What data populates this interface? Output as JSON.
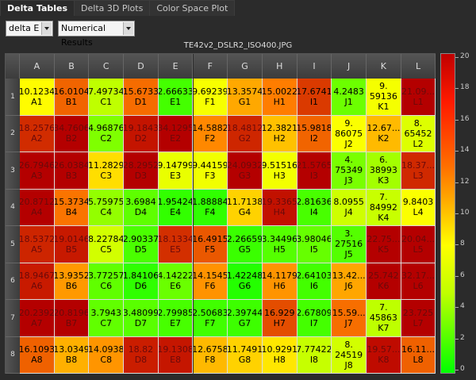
{
  "tabs": [
    {
      "label": "Delta Tables",
      "active": true
    },
    {
      "label": "Delta 3D Plots",
      "active": false
    },
    {
      "label": "Color Space Plot",
      "active": false
    }
  ],
  "controls": {
    "metric_select": "delta E",
    "view_select": "Numerical Results"
  },
  "plot_title": "TE42v2_DSLR2_ISO400.JPG",
  "columns": [
    "A",
    "B",
    "C",
    "D",
    "E",
    "F",
    "G",
    "H",
    "I",
    "J",
    "K",
    "L"
  ],
  "rows": [
    "1",
    "2",
    "3",
    "4",
    "5",
    "6",
    "7",
    "8"
  ],
  "cells": [
    [
      [
        "10.1234",
        "A1"
      ],
      [
        "16.0104",
        "B1"
      ],
      [
        "7.49734",
        "C1"
      ],
      [
        "15.6733",
        "D1"
      ],
      [
        "2.66633",
        "E1"
      ],
      [
        "9.69239",
        "F1"
      ],
      [
        "13.3574",
        "G1"
      ],
      [
        "15.0022",
        "H1"
      ],
      [
        "17.6741",
        "I1"
      ],
      [
        "4.2483",
        "J1"
      ],
      [
        "9.\n59136",
        "K1"
      ],
      [
        "21.09...",
        "L1"
      ]
    ],
    [
      [
        "18.2576",
        "A2"
      ],
      [
        "34.7606",
        "B2"
      ],
      [
        "4.96876",
        "C2"
      ],
      [
        "19.1843",
        "D2"
      ],
      [
        "34.1295",
        "E2"
      ],
      [
        "14.5882",
        "F2"
      ],
      [
        "18.4812",
        "G2"
      ],
      [
        "12.3821",
        "H2"
      ],
      [
        "15.9818",
        "I2"
      ],
      [
        "9.\n86075",
        "J2"
      ],
      [
        "12.67...",
        "K2"
      ],
      [
        "8.\n65452",
        "L2"
      ]
    ],
    [
      [
        "26.7946",
        "A3"
      ],
      [
        "26.0384",
        "B3"
      ],
      [
        "11.2829",
        "C3"
      ],
      [
        "28.2952",
        "D3"
      ],
      [
        "9.14799",
        "E3"
      ],
      [
        "9.44159",
        "F3"
      ],
      [
        "24.0932",
        "G3"
      ],
      [
        "9.51516",
        "H3"
      ],
      [
        "21.5765",
        "I3"
      ],
      [
        "4.\n75349",
        "J3"
      ],
      [
        "6.\n38993",
        "K3"
      ],
      [
        "18.37...",
        "L3"
      ]
    ],
    [
      [
        "20.8712",
        "A4"
      ],
      [
        "15.3734",
        "B4"
      ],
      [
        "5.75975",
        "C4"
      ],
      [
        "3.6984",
        "D4"
      ],
      [
        "1.95424",
        "E4"
      ],
      [
        "1.88884",
        "F4"
      ],
      [
        "11.7138",
        "G4"
      ],
      [
        "19.3365",
        "H4"
      ],
      [
        "2.81636",
        "I4"
      ],
      [
        "8.0955",
        "J4"
      ],
      [
        "7.\n84992",
        "K4"
      ],
      [
        "9.8403",
        "L4"
      ]
    ],
    [
      [
        "18.5372",
        "A5"
      ],
      [
        "19.0146",
        "B5"
      ],
      [
        "8.22784",
        "C5"
      ],
      [
        "2.90337",
        "D5"
      ],
      [
        "18.1334",
        "E5"
      ],
      [
        "16.4915",
        "F5"
      ],
      [
        "2.26659",
        "G5"
      ],
      [
        "3.34496",
        "H5"
      ],
      [
        "3.98046",
        "I5"
      ],
      [
        "3.\n27516",
        "J5"
      ],
      [
        "22.75...",
        "K5"
      ],
      [
        "20.04...",
        "L5"
      ]
    ],
    [
      [
        "18.9467",
        "A6"
      ],
      [
        "13.9352",
        "B6"
      ],
      [
        "3.77257",
        "C6"
      ],
      [
        "1.84106",
        "D6"
      ],
      [
        "4.14222",
        "E6"
      ],
      [
        "14.1545",
        "F6"
      ],
      [
        "1.42248",
        "G6"
      ],
      [
        "14.1179",
        "H6"
      ],
      [
        "2.64103",
        "I6"
      ],
      [
        "13.42...",
        "J6"
      ],
      [
        "25.742",
        "K6"
      ],
      [
        "32.17...",
        "L6"
      ]
    ],
    [
      [
        "20.2392",
        "A7"
      ],
      [
        "20.8196",
        "B7"
      ],
      [
        "3.7943",
        "C7"
      ],
      [
        "3.48099",
        "D7"
      ],
      [
        "2.79985",
        "E7"
      ],
      [
        "2.50683",
        "F7"
      ],
      [
        "2.39744",
        "G7"
      ],
      [
        "16.929",
        "H7"
      ],
      [
        "2.67809",
        "I7"
      ],
      [
        "15.59...",
        "J7"
      ],
      [
        "7.\n45863",
        "K7"
      ],
      [
        "23.725",
        "L7"
      ]
    ],
    [
      [
        "16.1093",
        "A8"
      ],
      [
        "13.0349",
        "B8"
      ],
      [
        "14.0938",
        "C8"
      ],
      [
        "18.82",
        "D8"
      ],
      [
        "19.1308",
        "E8"
      ],
      [
        "12.6758",
        "F8"
      ],
      [
        "11.7491",
        "G8"
      ],
      [
        "10.9291",
        "H8"
      ],
      [
        "7.77422",
        "I8"
      ],
      [
        "8.\n24519",
        "J8"
      ],
      [
        "19.57...",
        "K8"
      ],
      [
        "16.11...",
        "L8"
      ]
    ]
  ],
  "cell_values": [
    [
      10.1234,
      16.0104,
      7.49734,
      15.6733,
      2.66633,
      9.69239,
      13.3574,
      15.0022,
      17.6741,
      4.2483,
      9.59136,
      21.09
    ],
    [
      18.2576,
      34.7606,
      4.96876,
      19.1843,
      34.1295,
      14.5882,
      18.4812,
      12.3821,
      15.9818,
      9.86075,
      12.67,
      8.65452
    ],
    [
      26.7946,
      26.0384,
      11.2829,
      28.2952,
      9.14799,
      9.44159,
      24.0932,
      9.51516,
      21.5765,
      4.75349,
      6.38993,
      18.37
    ],
    [
      20.8712,
      15.3734,
      5.75975,
      3.6984,
      1.95424,
      1.88884,
      11.7138,
      19.3365,
      2.81636,
      8.0955,
      7.84992,
      9.8403
    ],
    [
      18.5372,
      19.0146,
      8.22784,
      2.90337,
      18.1334,
      16.4915,
      2.26659,
      3.34496,
      3.98046,
      3.27516,
      22.75,
      20.04
    ],
    [
      18.9467,
      13.9352,
      3.77257,
      1.84106,
      4.14222,
      14.1545,
      1.42248,
      14.1179,
      2.64103,
      13.42,
      25.742,
      32.17
    ],
    [
      20.2392,
      20.8196,
      3.7943,
      3.48099,
      2.79985,
      2.50683,
      2.39744,
      16.929,
      2.67809,
      15.59,
      7.45863,
      23.725
    ],
    [
      16.1093,
      13.0349,
      14.0938,
      18.82,
      19.1308,
      12.6758,
      11.7491,
      10.9291,
      7.77422,
      8.24519,
      19.57,
      16.11
    ]
  ],
  "colorbar": {
    "ticks": [
      "20",
      "18",
      "16",
      "14",
      "12",
      "10",
      "8",
      "6",
      "4",
      "2",
      "0"
    ],
    "range": [
      0,
      20
    ]
  }
}
